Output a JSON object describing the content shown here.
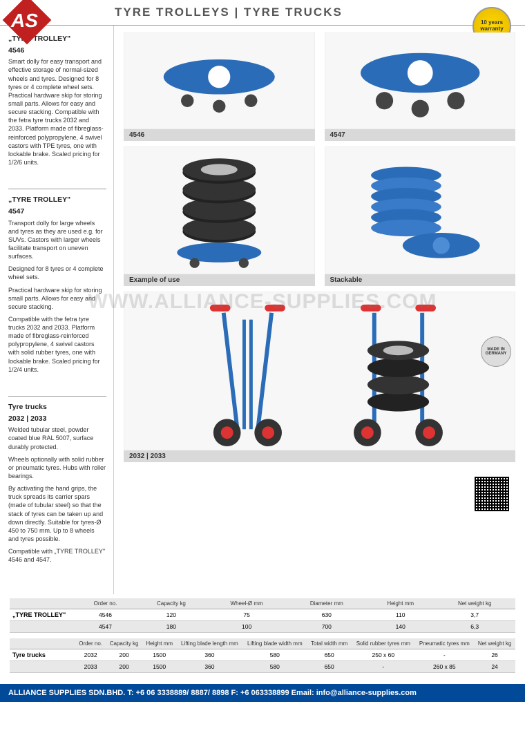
{
  "header": {
    "title": "TYRE TROLLEYS | TYRE TRUCKS",
    "logo_text": "AS",
    "warranty_line1": "10 years",
    "warranty_line2": "warranty"
  },
  "watermark": "WWW.ALLIANCE-SUPPLIES.COM",
  "sidebar": {
    "blocks": [
      {
        "title1": "„TYRE TROLLEY\"",
        "title2": "4546",
        "paras": [
          "Smart dolly for easy transport and effective storage of normal-sized wheels and tyres. Designed for 8 tyres or 4 complete wheel sets. Practical hardware skip for storing small parts. Allows for easy and secure stacking. Compatible with the fetra tyre trucks 2032 and 2033. Platform made of fibreglass-reinforced polypropylene, 4 swivel castors with TPE tyres, one with lockable brake. Scaled pricing for 1/2/6 units."
        ]
      },
      {
        "title1": "„TYRE TROLLEY\"",
        "title2": "4547",
        "paras": [
          "Transport dolly for large wheels and tyres as they are used e.g. for SUVs. Castors with larger wheels facilitate transport on uneven surfaces.",
          "Designed for 8 tyres or 4 complete wheel sets.",
          "Practical hardware skip for storing small parts. Allows for easy and secure stacking.",
          "Compatible with the fetra tyre trucks 2032 and 2033. Platform made of fibreglass-reinforced polypropylene, 4 swivel castors with solid rubber tyres, one with lockable brake. Scaled pricing for 1/2/4 units."
        ]
      },
      {
        "title1": "Tyre trucks",
        "title2": "2032 | 2033",
        "paras": [
          "Welded tubular steel, powder coated blue RAL 5007, surface durably protected.",
          "Wheels optionally with solid rubber or pneumatic tyres. Hubs with roller bearings.",
          "By activating the hand grips, the truck spreads its carrier spars (made of tubular steel) so that the stack of tyres can be taken up and down directly. Suitable for tyres-Ø 450 to 750 mm. Up to 8 wheels and tyres possible.",
          "Compatible with „TYRE TROLLEY\" 4546 and 4547."
        ]
      }
    ]
  },
  "images": {
    "row1": [
      {
        "caption": "4546",
        "placeholder": "[tyre trolley 4546]"
      },
      {
        "caption": "4547",
        "placeholder": "[tyre trolley 4547]"
      }
    ],
    "row2": [
      {
        "caption": "Example of use",
        "placeholder": "[tyres stacked on trolley]"
      },
      {
        "caption": "Stackable",
        "placeholder": "[stacked trolleys]"
      }
    ],
    "row3": [
      {
        "caption": "2032 | 2033",
        "placeholder": "[tyre truck with tyres]"
      }
    ],
    "made_in": "MADE IN GERMANY"
  },
  "table1": {
    "columns": [
      "",
      "Order no.",
      "Capacity kg",
      "Wheel-Ø mm",
      "Diameter mm",
      "Height mm",
      "Net weight kg"
    ],
    "rows": [
      [
        "„TYRE TROLLEY\"",
        "4546",
        "120",
        "75",
        "630",
        "110",
        "3,7"
      ],
      [
        "",
        "4547",
        "180",
        "100",
        "700",
        "140",
        "6,3"
      ]
    ]
  },
  "table2": {
    "columns": [
      "",
      "Order no.",
      "Capacity kg",
      "Height mm",
      "Lifting blade length mm",
      "Lifting blade width mm",
      "Total width mm",
      "Solid rubber tyres mm",
      "Pneumatic tyres mm",
      "Net weight kg"
    ],
    "rows": [
      [
        "Tyre trucks",
        "2032",
        "200",
        "1500",
        "360",
        "580",
        "650",
        "250 x 60",
        "-",
        "26"
      ],
      [
        "",
        "2033",
        "200",
        "1500",
        "360",
        "580",
        "650",
        "-",
        "260 x 85",
        "24"
      ]
    ]
  },
  "footer": "ALLIANCE SUPPLIES SDN.BHD. T: +6 06 3338889/ 8887/ 8898 F: +6 063338899 Email: info@alliance-supplies.com",
  "colors": {
    "brand_red": "#c02020",
    "header_gray": "#555555",
    "caption_bg": "#d9d9d9",
    "table_header_bg": "#e8e8e8",
    "footer_bg": "#004a99",
    "trolley_blue": "#2b6cb8",
    "warranty_gold": "#ffd700"
  }
}
